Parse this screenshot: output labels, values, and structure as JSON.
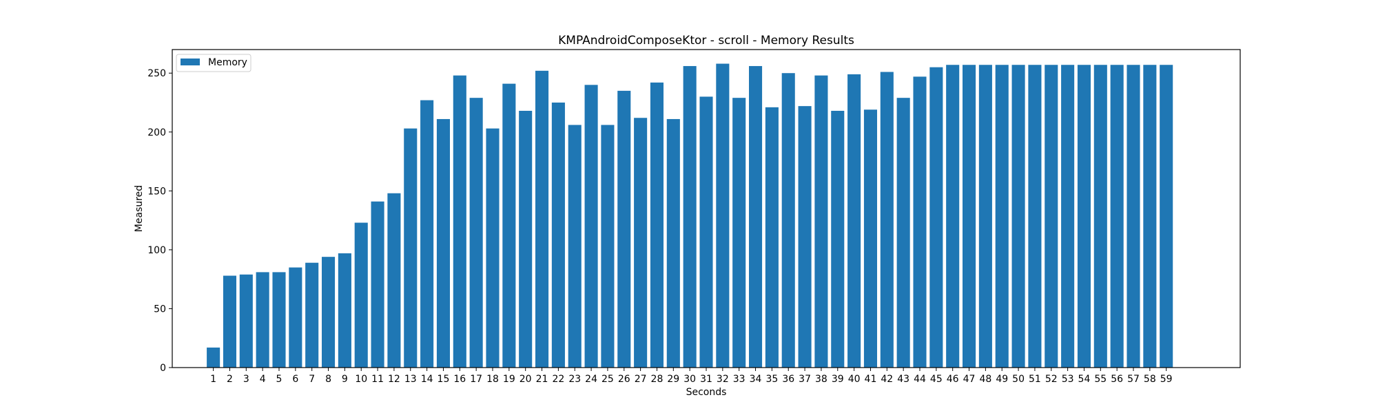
{
  "chart_data": {
    "type": "bar",
    "title": "KMPAndroidComposeKtor - scroll - Memory Results",
    "xlabel": "Seconds",
    "ylabel": "Measured",
    "categories": [
      "1",
      "2",
      "3",
      "4",
      "5",
      "6",
      "7",
      "8",
      "9",
      "10",
      "11",
      "12",
      "13",
      "14",
      "15",
      "16",
      "17",
      "18",
      "19",
      "20",
      "21",
      "22",
      "23",
      "24",
      "25",
      "26",
      "27",
      "28",
      "29",
      "30",
      "31",
      "32",
      "33",
      "34",
      "35",
      "36",
      "37",
      "38",
      "39",
      "40",
      "41",
      "42",
      "43",
      "44",
      "45",
      "46",
      "47",
      "48",
      "49",
      "50",
      "51",
      "52",
      "53",
      "54",
      "55",
      "56",
      "57",
      "58",
      "59"
    ],
    "series": [
      {
        "name": "Memory",
        "color": "#1f77b4",
        "values": [
          17,
          78,
          79,
          81,
          81,
          85,
          89,
          94,
          97,
          123,
          141,
          148,
          203,
          227,
          211,
          248,
          229,
          203,
          241,
          218,
          252,
          225,
          206,
          240,
          206,
          235,
          212,
          242,
          211,
          256,
          230,
          258,
          229,
          256,
          221,
          250,
          222,
          248,
          218,
          249,
          219,
          251,
          229,
          247,
          255,
          257,
          257,
          257,
          257,
          257,
          257,
          257,
          257,
          257,
          257,
          257,
          257,
          257,
          257
        ]
      }
    ],
    "yticks": [
      0,
      50,
      100,
      150,
      200,
      250
    ],
    "ylim": [
      0,
      270
    ],
    "xlim": [
      -2.5,
      62.5
    ],
    "grid": false,
    "legend_position": "top-left"
  }
}
